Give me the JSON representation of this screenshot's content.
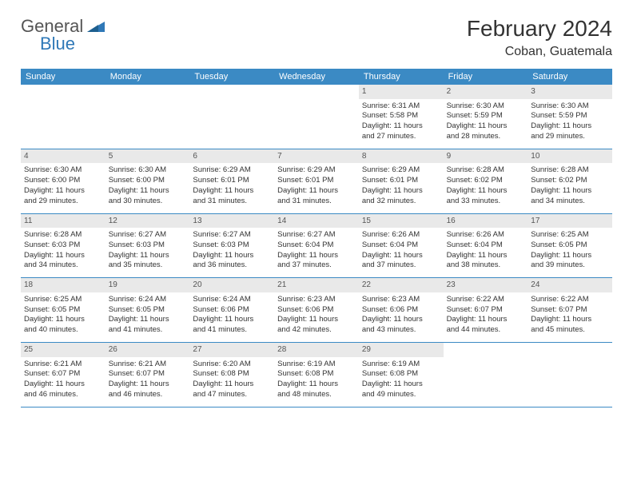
{
  "logo": {
    "text1": "General",
    "text2": "Blue"
  },
  "title": "February 2024",
  "location": "Coban, Guatemala",
  "colors": {
    "header_bg": "#3b8ac4",
    "header_text": "#ffffff",
    "daynum_bg": "#e9e9e9",
    "border": "#3b8ac4",
    "logo_blue": "#2f78b7"
  },
  "weekdays": [
    "Sunday",
    "Monday",
    "Tuesday",
    "Wednesday",
    "Thursday",
    "Friday",
    "Saturday"
  ],
  "weeks": [
    [
      {
        "n": "",
        "sr": "",
        "ss": "",
        "dl1": "",
        "dl2": "",
        "empty": true
      },
      {
        "n": "",
        "sr": "",
        "ss": "",
        "dl1": "",
        "dl2": "",
        "empty": true
      },
      {
        "n": "",
        "sr": "",
        "ss": "",
        "dl1": "",
        "dl2": "",
        "empty": true
      },
      {
        "n": "",
        "sr": "",
        "ss": "",
        "dl1": "",
        "dl2": "",
        "empty": true
      },
      {
        "n": "1",
        "sr": "Sunrise: 6:31 AM",
        "ss": "Sunset: 5:58 PM",
        "dl1": "Daylight: 11 hours",
        "dl2": "and 27 minutes."
      },
      {
        "n": "2",
        "sr": "Sunrise: 6:30 AM",
        "ss": "Sunset: 5:59 PM",
        "dl1": "Daylight: 11 hours",
        "dl2": "and 28 minutes."
      },
      {
        "n": "3",
        "sr": "Sunrise: 6:30 AM",
        "ss": "Sunset: 5:59 PM",
        "dl1": "Daylight: 11 hours",
        "dl2": "and 29 minutes."
      }
    ],
    [
      {
        "n": "4",
        "sr": "Sunrise: 6:30 AM",
        "ss": "Sunset: 6:00 PM",
        "dl1": "Daylight: 11 hours",
        "dl2": "and 29 minutes."
      },
      {
        "n": "5",
        "sr": "Sunrise: 6:30 AM",
        "ss": "Sunset: 6:00 PM",
        "dl1": "Daylight: 11 hours",
        "dl2": "and 30 minutes."
      },
      {
        "n": "6",
        "sr": "Sunrise: 6:29 AM",
        "ss": "Sunset: 6:01 PM",
        "dl1": "Daylight: 11 hours",
        "dl2": "and 31 minutes."
      },
      {
        "n": "7",
        "sr": "Sunrise: 6:29 AM",
        "ss": "Sunset: 6:01 PM",
        "dl1": "Daylight: 11 hours",
        "dl2": "and 31 minutes."
      },
      {
        "n": "8",
        "sr": "Sunrise: 6:29 AM",
        "ss": "Sunset: 6:01 PM",
        "dl1": "Daylight: 11 hours",
        "dl2": "and 32 minutes."
      },
      {
        "n": "9",
        "sr": "Sunrise: 6:28 AM",
        "ss": "Sunset: 6:02 PM",
        "dl1": "Daylight: 11 hours",
        "dl2": "and 33 minutes."
      },
      {
        "n": "10",
        "sr": "Sunrise: 6:28 AM",
        "ss": "Sunset: 6:02 PM",
        "dl1": "Daylight: 11 hours",
        "dl2": "and 34 minutes."
      }
    ],
    [
      {
        "n": "11",
        "sr": "Sunrise: 6:28 AM",
        "ss": "Sunset: 6:03 PM",
        "dl1": "Daylight: 11 hours",
        "dl2": "and 34 minutes."
      },
      {
        "n": "12",
        "sr": "Sunrise: 6:27 AM",
        "ss": "Sunset: 6:03 PM",
        "dl1": "Daylight: 11 hours",
        "dl2": "and 35 minutes."
      },
      {
        "n": "13",
        "sr": "Sunrise: 6:27 AM",
        "ss": "Sunset: 6:03 PM",
        "dl1": "Daylight: 11 hours",
        "dl2": "and 36 minutes."
      },
      {
        "n": "14",
        "sr": "Sunrise: 6:27 AM",
        "ss": "Sunset: 6:04 PM",
        "dl1": "Daylight: 11 hours",
        "dl2": "and 37 minutes."
      },
      {
        "n": "15",
        "sr": "Sunrise: 6:26 AM",
        "ss": "Sunset: 6:04 PM",
        "dl1": "Daylight: 11 hours",
        "dl2": "and 37 minutes."
      },
      {
        "n": "16",
        "sr": "Sunrise: 6:26 AM",
        "ss": "Sunset: 6:04 PM",
        "dl1": "Daylight: 11 hours",
        "dl2": "and 38 minutes."
      },
      {
        "n": "17",
        "sr": "Sunrise: 6:25 AM",
        "ss": "Sunset: 6:05 PM",
        "dl1": "Daylight: 11 hours",
        "dl2": "and 39 minutes."
      }
    ],
    [
      {
        "n": "18",
        "sr": "Sunrise: 6:25 AM",
        "ss": "Sunset: 6:05 PM",
        "dl1": "Daylight: 11 hours",
        "dl2": "and 40 minutes."
      },
      {
        "n": "19",
        "sr": "Sunrise: 6:24 AM",
        "ss": "Sunset: 6:05 PM",
        "dl1": "Daylight: 11 hours",
        "dl2": "and 41 minutes."
      },
      {
        "n": "20",
        "sr": "Sunrise: 6:24 AM",
        "ss": "Sunset: 6:06 PM",
        "dl1": "Daylight: 11 hours",
        "dl2": "and 41 minutes."
      },
      {
        "n": "21",
        "sr": "Sunrise: 6:23 AM",
        "ss": "Sunset: 6:06 PM",
        "dl1": "Daylight: 11 hours",
        "dl2": "and 42 minutes."
      },
      {
        "n": "22",
        "sr": "Sunrise: 6:23 AM",
        "ss": "Sunset: 6:06 PM",
        "dl1": "Daylight: 11 hours",
        "dl2": "and 43 minutes."
      },
      {
        "n": "23",
        "sr": "Sunrise: 6:22 AM",
        "ss": "Sunset: 6:07 PM",
        "dl1": "Daylight: 11 hours",
        "dl2": "and 44 minutes."
      },
      {
        "n": "24",
        "sr": "Sunrise: 6:22 AM",
        "ss": "Sunset: 6:07 PM",
        "dl1": "Daylight: 11 hours",
        "dl2": "and 45 minutes."
      }
    ],
    [
      {
        "n": "25",
        "sr": "Sunrise: 6:21 AM",
        "ss": "Sunset: 6:07 PM",
        "dl1": "Daylight: 11 hours",
        "dl2": "and 46 minutes."
      },
      {
        "n": "26",
        "sr": "Sunrise: 6:21 AM",
        "ss": "Sunset: 6:07 PM",
        "dl1": "Daylight: 11 hours",
        "dl2": "and 46 minutes."
      },
      {
        "n": "27",
        "sr": "Sunrise: 6:20 AM",
        "ss": "Sunset: 6:08 PM",
        "dl1": "Daylight: 11 hours",
        "dl2": "and 47 minutes."
      },
      {
        "n": "28",
        "sr": "Sunrise: 6:19 AM",
        "ss": "Sunset: 6:08 PM",
        "dl1": "Daylight: 11 hours",
        "dl2": "and 48 minutes."
      },
      {
        "n": "29",
        "sr": "Sunrise: 6:19 AM",
        "ss": "Sunset: 6:08 PM",
        "dl1": "Daylight: 11 hours",
        "dl2": "and 49 minutes."
      },
      {
        "n": "",
        "sr": "",
        "ss": "",
        "dl1": "",
        "dl2": "",
        "empty": true
      },
      {
        "n": "",
        "sr": "",
        "ss": "",
        "dl1": "",
        "dl2": "",
        "empty": true
      }
    ]
  ]
}
